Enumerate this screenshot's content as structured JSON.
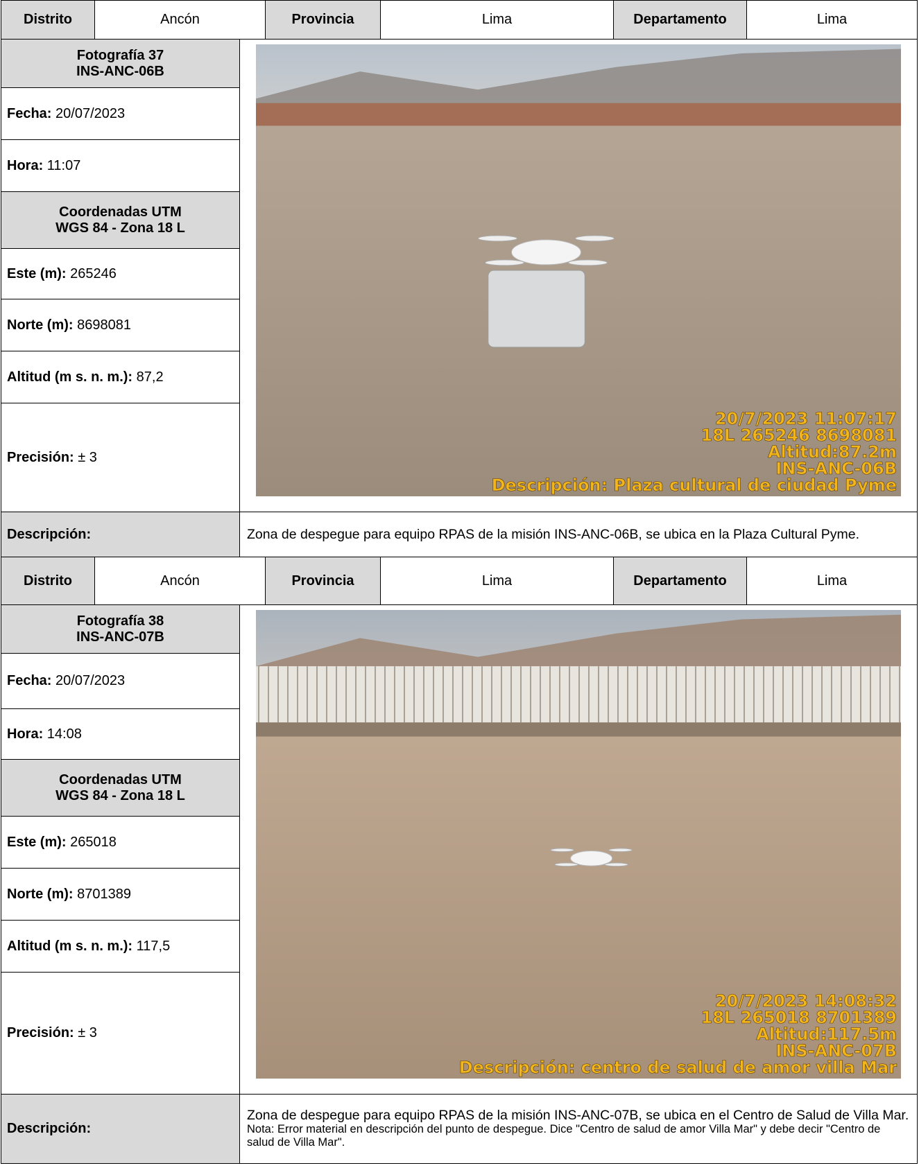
{
  "records": [
    {
      "header": [
        "Distrito",
        "Ancón",
        "Provincia",
        "Lima",
        "Departamento",
        "Lima"
      ],
      "photo_title": [
        "Fotografía 37",
        "INS-ANC-06B"
      ],
      "fields": [
        {
          "label": "Fecha:",
          "value": "20/07/2023"
        },
        {
          "label": "Hora:",
          "value": "11:07"
        }
      ],
      "coord_title": [
        "Coordenadas UTM",
        "WGS 84 - Zona 18 L"
      ],
      "coords": [
        {
          "label": "Este (m):",
          "value": "265246"
        },
        {
          "label": "Norte (m):",
          "value": "8698081"
        },
        {
          "label": "Altitud (m s. n. m.):",
          "value": "87,2"
        },
        {
          "label": "Precisión:",
          "value": "± 3"
        }
      ],
      "photo_overlay": [
        "20/7/2023 11:07:17",
        "18L 265246 8698081",
        "Altitud:87.2m",
        "INS-ANC-06B",
        "Descripción: Plaza cultural de ciudad Pyme"
      ],
      "description_label": "Descripción:",
      "description": "Zona de despegue para equipo RPAS de la misión INS-ANC-06B, se ubica en la Plaza Cultural Pyme."
    },
    {
      "header": [
        "Distrito",
        "Ancón",
        "Provincia",
        "Lima",
        "Departamento",
        "Lima"
      ],
      "photo_title": [
        "Fotografía 38",
        "INS-ANC-07B"
      ],
      "fields": [
        {
          "label": "Fecha:",
          "value": "20/07/2023"
        },
        {
          "label": "Hora:",
          "value": "14:08"
        }
      ],
      "coord_title": [
        "Coordenadas UTM",
        "WGS 84 - Zona 18 L"
      ],
      "coords": [
        {
          "label": "Este (m):",
          "value": "265018"
        },
        {
          "label": "Norte (m):",
          "value": "8701389"
        },
        {
          "label": "Altitud (m s. n. m.):",
          "value": "117,5"
        },
        {
          "label": "Precisión:",
          "value": "± 3"
        }
      ],
      "photo_overlay": [
        "20/7/2023 14:08:32",
        "18L 265018 8701389",
        "Altitud:117.5m",
        "INS-ANC-07B",
        "Descripción: centro de salud de amor villa Mar"
      ],
      "description_label": "Descripción:",
      "description": "Zona de despegue para equipo RPAS de la misión INS-ANC-07B, se ubica en el Centro de Salud de Villa Mar.",
      "note": "Nota: Error material en descripción del punto de despegue. Dice \"Centro de salud de amor Villa Mar\" y debe decir \"Centro de salud de Villa Mar\"."
    }
  ]
}
